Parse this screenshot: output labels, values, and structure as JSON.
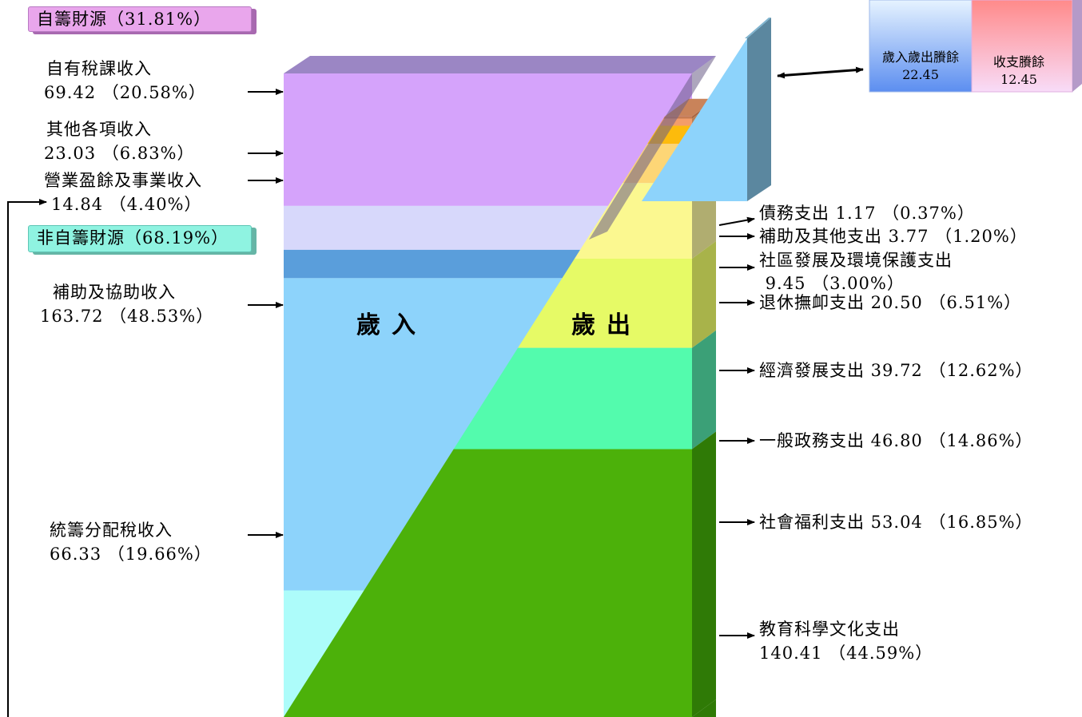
{
  "badges": {
    "self_funded": "自籌財源（31.81%）",
    "non_self_funded": "非自籌財源（68.19%）"
  },
  "center_labels": {
    "revenue": "歲入",
    "expenditure": "歲出"
  },
  "surplus_box": {
    "revenue_minus_expenditure": {
      "label": "歲入歲出賸餘",
      "value": "22.45"
    },
    "balance_surplus": {
      "label": "收支賸餘",
      "value": "12.45"
    }
  },
  "chart_data": {
    "type": "stacked_bar",
    "title": "",
    "revenue": [
      {
        "name": "自有稅課收入",
        "value": 69.42,
        "percent": 20.58,
        "value_text": "69.42 （20.58%）",
        "color": "#d5a3fb"
      },
      {
        "name": "其他各項收入",
        "value": 23.03,
        "percent": 6.83,
        "value_text": "23.03 （6.83%）",
        "color": "#d7d8fb"
      },
      {
        "name": "營業盈餘及事業收入",
        "value": 14.84,
        "percent": 4.4,
        "value_text": "14.84 （4.40%）",
        "color": "#5a9edb"
      },
      {
        "name": "補助及協助收入",
        "value": 163.72,
        "percent": 48.53,
        "value_text": "163.72 （48.53%）",
        "color": "#8dd3fb"
      },
      {
        "name": "統籌分配稅收入",
        "value": 66.33,
        "percent": 19.66,
        "value_text": "66.33 （19.66%）",
        "color": "#adfcfa"
      }
    ],
    "expenditure": [
      {
        "name": "債務支出",
        "value": 1.17,
        "percent": 0.37,
        "text": "債務支出 1.17 （0.37%）",
        "color": "#c67b52",
        "side": "#a86542"
      },
      {
        "name": "補助及其他支出",
        "value": 3.77,
        "percent": 1.2,
        "text": "補助及其他支出 3.77 （1.20%）",
        "color": "#f39d6a",
        "side": "#b98056"
      },
      {
        "name": "社區發展及環境保護支出",
        "value": 9.45,
        "percent": 3.0,
        "text": "社區發展及環境保護支出",
        "text2": " 9.45 （3.00%）",
        "color": "#fdbb0c",
        "side": "#b98d25"
      },
      {
        "name": "退休撫卹支出",
        "value": 20.5,
        "percent": 6.51,
        "text": "退休撫卹支出 20.50 （6.51%）",
        "color": "#fdd676",
        "side": "#b7a060"
      },
      {
        "name": "經濟發展支出",
        "value": 39.72,
        "percent": 12.62,
        "text": "經濟發展支出 39.72 （12.62%）",
        "color": "#fbf890",
        "side": "#b0ad70"
      },
      {
        "name": "一般政務支出",
        "value": 46.8,
        "percent": 14.86,
        "text": "一般政務支出 46.80 （14.86%）",
        "color": "#e6fa66",
        "side": "#a8b34a"
      },
      {
        "name": "社會福利支出",
        "value": 53.04,
        "percent": 16.85,
        "text": "社會福利支出 53.04 （16.85%）",
        "color": "#53fbad",
        "side": "#3ba077"
      },
      {
        "name": "教育科學文化支出",
        "value": 140.41,
        "percent": 44.59,
        "text": "教育科學文化支出",
        "text2": "140.41 （44.59%）",
        "color": "#22e126",
        "side": "#1a9a1d"
      }
    ],
    "bottom_segment_color": "#4cb10a",
    "bottom_side_color": "#2f7a06",
    "top_side_color": "#9b86c4"
  }
}
